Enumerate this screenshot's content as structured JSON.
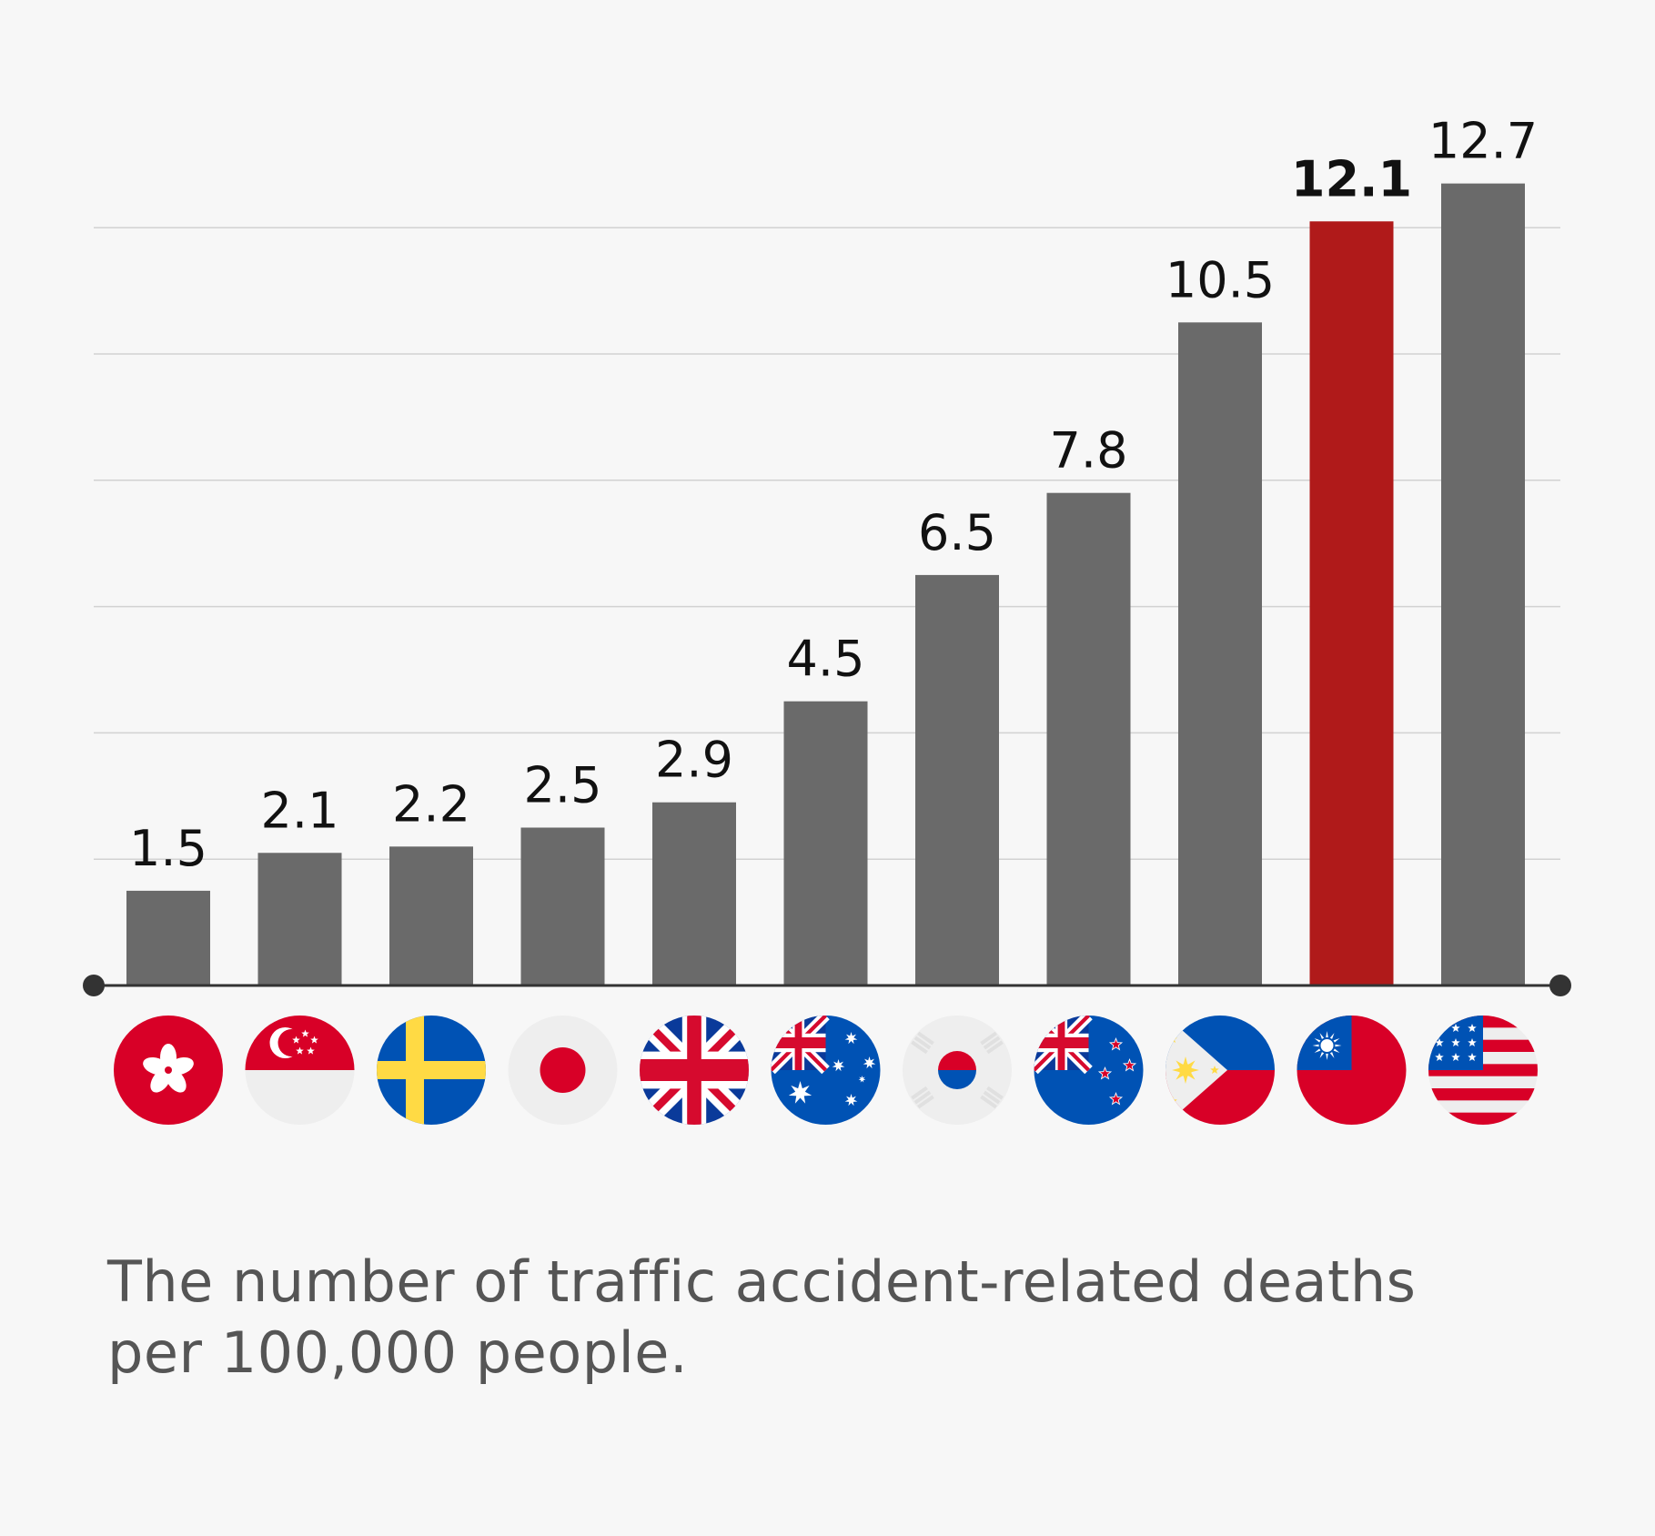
{
  "chart_data": {
    "type": "bar",
    "categories": [
      "Hong Kong",
      "Singapore",
      "Sweden",
      "Japan",
      "United Kingdom",
      "Australia",
      "South Korea",
      "New Zealand",
      "Philippines",
      "Taiwan",
      "United States"
    ],
    "flags": [
      "hong-kong",
      "singapore",
      "sweden",
      "japan",
      "united-kingdom",
      "australia",
      "south-korea",
      "new-zealand",
      "philippines",
      "taiwan",
      "united-states"
    ],
    "values": [
      1.5,
      2.1,
      2.2,
      2.5,
      2.9,
      4.5,
      6.5,
      7.8,
      10.5,
      12.1,
      12.7
    ],
    "labels": [
      "1.5",
      "2.1",
      "2.2",
      "2.5",
      "2.9",
      "4.5",
      "6.5",
      "7.8",
      "10.5",
      "12.1",
      "12.7"
    ],
    "highlight": "Taiwan",
    "ylim": [
      0,
      13.3
    ],
    "gridlines": [
      2,
      4,
      6,
      8,
      10,
      12
    ],
    "grid": true,
    "bar_color": "#6a6a6a",
    "highlight_color": "#b01a1a",
    "caption": "The number of traffic accident-related deaths per 100,000 people."
  }
}
